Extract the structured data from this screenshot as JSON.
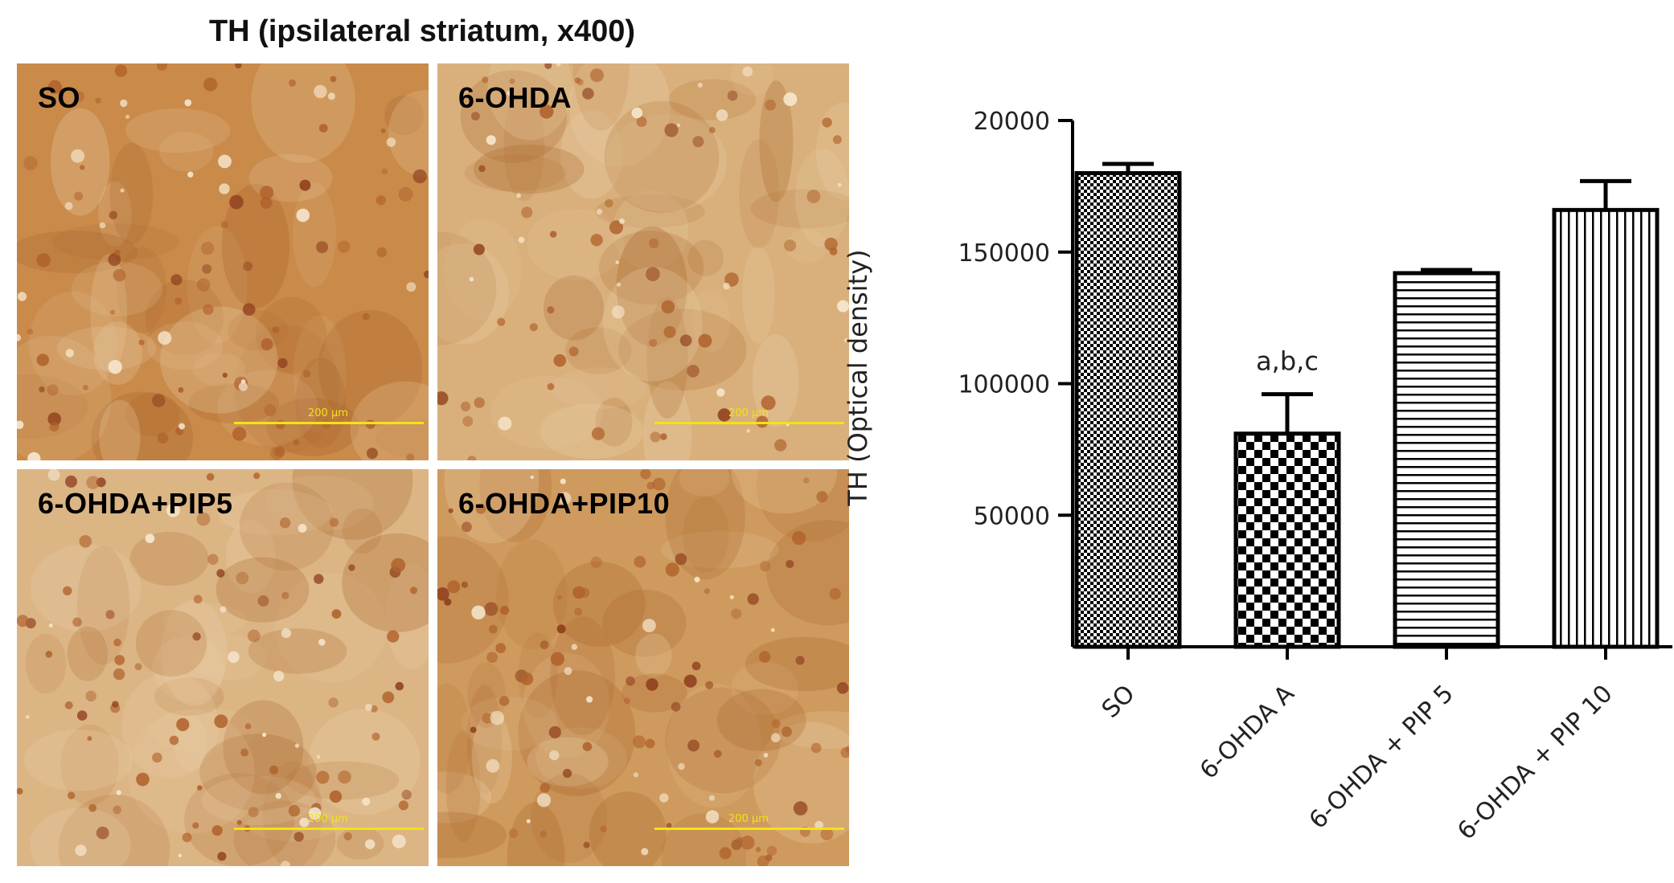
{
  "figure": {
    "title": "TH (ipsilateral striatum, x400)"
  },
  "micrographs": [
    {
      "label": "SO",
      "scale": "200 µm",
      "stain": "#c98a4a",
      "density": "high"
    },
    {
      "label": "6-OHDA",
      "scale": "200 µm",
      "stain": "#d9b07c",
      "density": "low"
    },
    {
      "label": "6-OHDA+PIP5",
      "scale": "200 µm",
      "stain": "#dcb585",
      "density": "medium"
    },
    {
      "label": "6-OHDA+PIP10",
      "scale": "200 µm",
      "stain": "#cf9a5e",
      "density": "medium-high"
    }
  ],
  "chart_data": {
    "type": "bar",
    "title": "",
    "xlabel": "",
    "ylabel": "TH (Optical density)",
    "categories": [
      "SO",
      "6-OHDA  A",
      "6-OHDA + PIP 5",
      "6-OHDA + PIP 10"
    ],
    "values": [
      180000,
      81000,
      142000,
      166000
    ],
    "errors": [
      3500,
      15000,
      1200,
      11000
    ],
    "patterns": [
      "fine-checker",
      "coarse-checker",
      "horizontal-lines",
      "vertical-lines"
    ],
    "annotations": [
      {
        "category": "6-OHDA  A",
        "text": "a,b,c"
      }
    ],
    "yticks": [
      50000,
      100000,
      150000,
      20000
    ],
    "ylim": [
      0,
      200000
    ],
    "grid": false,
    "legend": "none",
    "colors": {
      "bar_edge": "#000000",
      "bar_fill": "#ffffff"
    }
  }
}
